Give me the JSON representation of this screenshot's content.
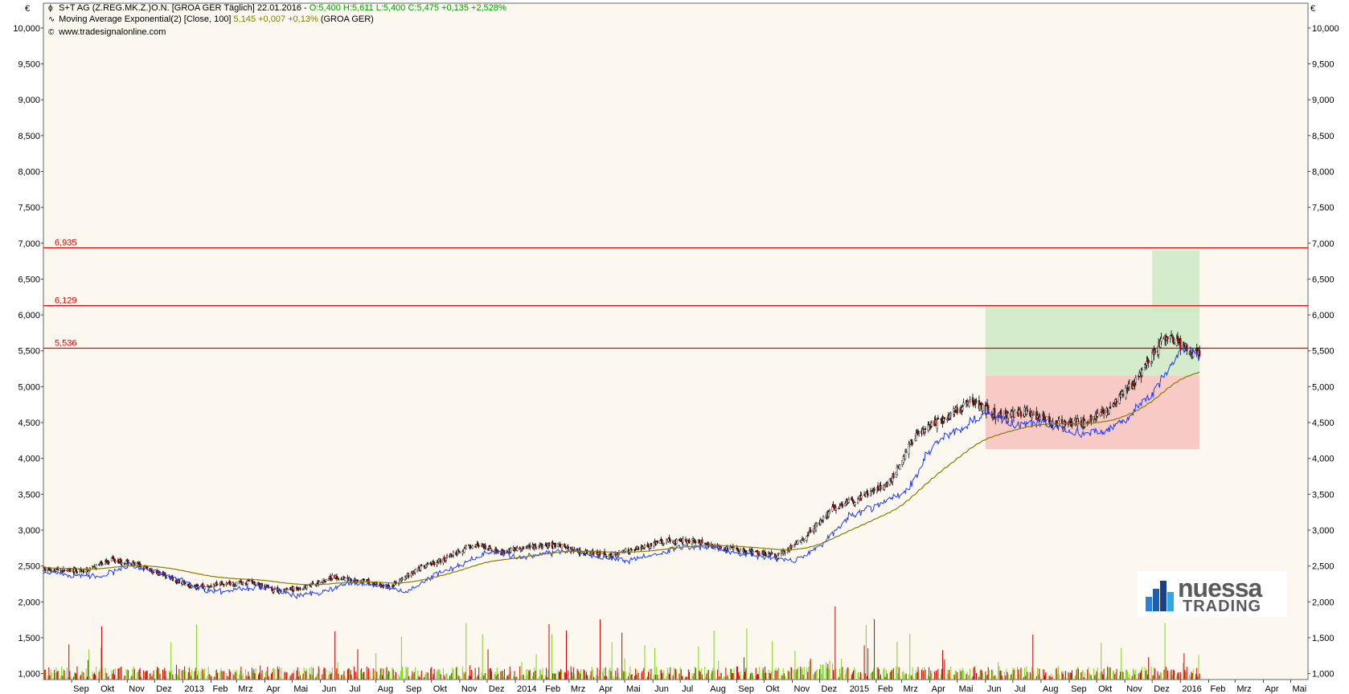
{
  "header": {
    "line1_prefix": "S+T AG (Z.REG.MK.Z.)O.N. [GROA GER  Täglich] 22.01.2016 - ",
    "line1_quote": "O:5,400 H:5,611 L:5,400 C:5,475 +0,135 +2,528%",
    "line2_prefix": "Moving Average Exponential(2) [Close, 100] ",
    "line2_value": "5,145 +0,007 +0,13%",
    "line2_suffix": " (GROA GER)",
    "line3": "www.tradesignalonline.com",
    "icon1": "candlestick-icon",
    "icon2": "line-icon",
    "icon3": "copyright-icon"
  },
  "logo": {
    "line1": "nuessa",
    "line2": "TRADING"
  },
  "chart_data": {
    "type": "candlestick",
    "currency_label": "€",
    "ylim": [
      900,
      10200
    ],
    "y_ticks": [
      "10,000",
      "9,500",
      "9,000",
      "8,500",
      "8,000",
      "7,500",
      "7,000",
      "6,500",
      "6,000",
      "5,500",
      "5,000",
      "4,500",
      "4,000",
      "3,500",
      "3,000",
      "2,500",
      "2,000",
      "1,500",
      "1,000"
    ],
    "y_tick_values": [
      10000,
      9500,
      9000,
      8500,
      8000,
      7500,
      7000,
      6500,
      6000,
      5500,
      5000,
      4500,
      4000,
      3500,
      3000,
      2500,
      2000,
      1500,
      1000
    ],
    "x_ticks": [
      "Sep",
      "Okt",
      "Nov",
      "Dez",
      "2013",
      "Feb",
      "Mrz",
      "Apr",
      "Mai",
      "Jun",
      "Jul",
      "Aug",
      "Sep",
      "Okt",
      "Nov",
      "Dez",
      "2014",
      "Feb",
      "Mrz",
      "Apr",
      "Mai",
      "Jun",
      "Jul",
      "Aug",
      "Sep",
      "Okt",
      "Nov",
      "Dez",
      "2015",
      "Feb",
      "Mrz",
      "Apr",
      "Mai",
      "Jun",
      "Jul",
      "Aug",
      "Sep",
      "Okt",
      "Nov",
      "Dez",
      "2016",
      "Feb",
      "Mrz",
      "Apr",
      "Mai"
    ],
    "x_tick_dates": [
      "2012-09",
      "2012-10",
      "2012-11",
      "2012-12",
      "2013-01",
      "2013-02",
      "2013-03",
      "2013-04",
      "2013-05",
      "2013-06",
      "2013-07",
      "2013-08",
      "2013-09",
      "2013-10",
      "2013-11",
      "2013-12",
      "2014-01",
      "2014-02",
      "2014-03",
      "2014-04",
      "2014-05",
      "2014-06",
      "2014-07",
      "2014-08",
      "2014-09",
      "2014-10",
      "2014-11",
      "2014-12",
      "2015-01",
      "2015-02",
      "2015-03",
      "2015-04",
      "2015-05",
      "2015-06",
      "2015-07",
      "2015-08",
      "2015-09",
      "2015-10",
      "2015-11",
      "2015-12",
      "2016-01",
      "2016-02",
      "2016-03",
      "2016-04",
      "2016-05"
    ],
    "horizontal_levels": [
      {
        "label": "6,935",
        "value": 6935,
        "color": "#e00000"
      },
      {
        "label": "6,129",
        "value": 6129,
        "color": "#e00000"
      },
      {
        "label": "5,536",
        "value": 5536,
        "color": "#e00000"
      }
    ],
    "zones": [
      {
        "color": "green",
        "date_from": "2015-06-01",
        "date_to": "2016-01-22",
        "y_from": 5150,
        "y_to": 6120
      },
      {
        "color": "red",
        "date_from": "2015-06-01",
        "date_to": "2016-01-22",
        "y_from": 4130,
        "y_to": 5150
      },
      {
        "color": "green",
        "date_from": "2015-12-01",
        "date_to": "2016-01-22",
        "y_from": 6030,
        "y_to": 6900
      }
    ],
    "price_series": {
      "name": "S+T AG (Z.REG.MK.Z.)O.N.",
      "dates": [
        "2012-08",
        "2012-09",
        "2012-10",
        "2012-11",
        "2012-12",
        "2013-01",
        "2013-02",
        "2013-03",
        "2013-04",
        "2013-05",
        "2013-06",
        "2013-07",
        "2013-08",
        "2013-09",
        "2013-10",
        "2013-11",
        "2013-12",
        "2014-01",
        "2014-02",
        "2014-03",
        "2014-04",
        "2014-05",
        "2014-06",
        "2014-07",
        "2014-08",
        "2014-09",
        "2014-10",
        "2014-11",
        "2014-12",
        "2015-01",
        "2015-02",
        "2015-03",
        "2015-04",
        "2015-05",
        "2015-06",
        "2015-07",
        "2015-08",
        "2015-09",
        "2015-10",
        "2015-11",
        "2015-12",
        "2016-01"
      ],
      "close": [
        2450,
        2420,
        2600,
        2500,
        2350,
        2200,
        2250,
        2280,
        2150,
        2200,
        2350,
        2300,
        2200,
        2450,
        2600,
        2800,
        2700,
        2750,
        2800,
        2700,
        2650,
        2750,
        2850,
        2850,
        2750,
        2700,
        2650,
        2900,
        3300,
        3450,
        3650,
        4300,
        4550,
        4800,
        4600,
        4650,
        4500,
        4500,
        4700,
        5100,
        5700,
        5475
      ]
    },
    "volume_range": [
      0,
      2450
    ]
  }
}
